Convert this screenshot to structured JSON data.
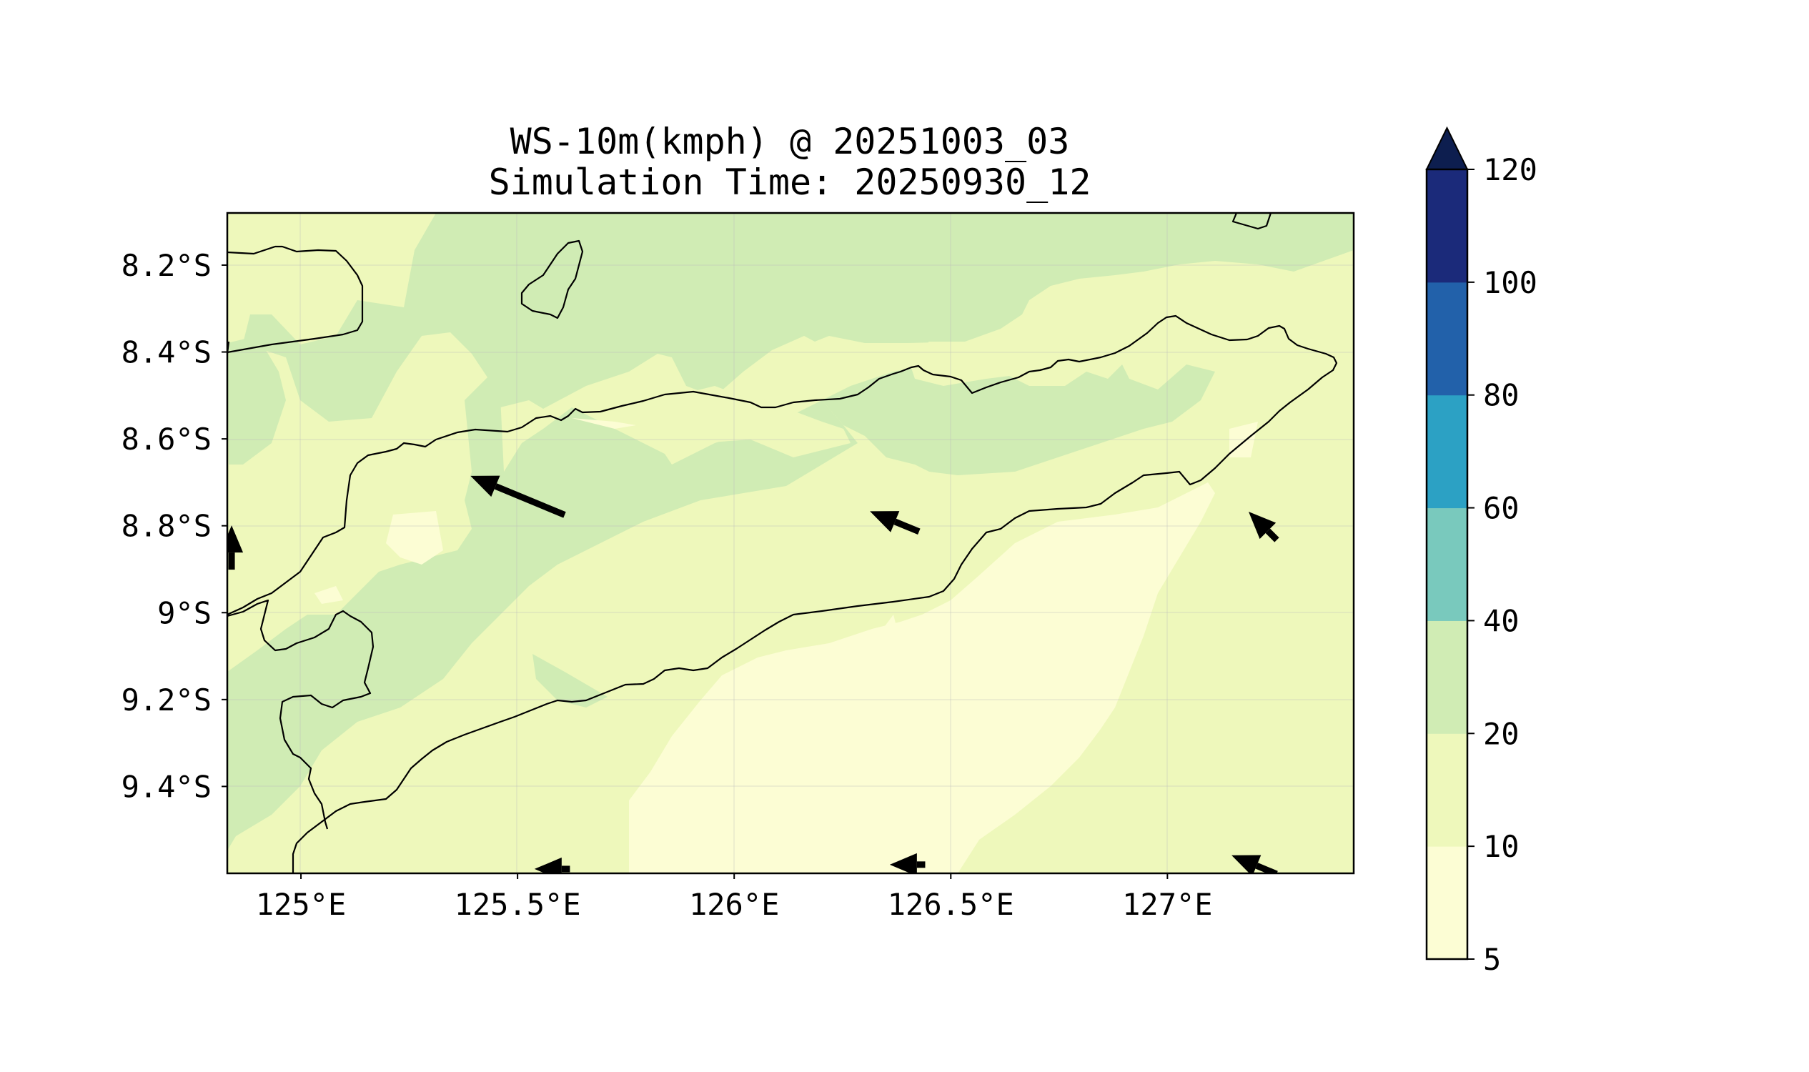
{
  "chart_data": {
    "type": "map",
    "title": "WS-10m(kmph) @ 20251003_03",
    "subtitle": "Simulation Time: 20250930_12",
    "variable": "WS-10m(kmph)",
    "valid_time": "20251003_03",
    "simulation_time": "20250930_12",
    "lon_range": [
      124.83,
      127.43
    ],
    "lat_range": [
      -9.6,
      -8.08
    ],
    "x_ticks": [
      {
        "value": 125.0,
        "label": "125°E"
      },
      {
        "value": 125.5,
        "label": "125.5°E"
      },
      {
        "value": 126.0,
        "label": "126°E"
      },
      {
        "value": 126.5,
        "label": "126.5°E"
      },
      {
        "value": 127.0,
        "label": "127°E"
      }
    ],
    "y_ticks": [
      {
        "value": -8.2,
        "label": "8.2°S"
      },
      {
        "value": -8.4,
        "label": "8.4°S"
      },
      {
        "value": -8.6,
        "label": "8.6°S"
      },
      {
        "value": -8.8,
        "label": "8.8°S"
      },
      {
        "value": -9.0,
        "label": "9°S"
      },
      {
        "value": -9.2,
        "label": "9.2°S"
      },
      {
        "value": -9.4,
        "label": "9.4°S"
      }
    ],
    "colorbar": {
      "levels": [
        5,
        10,
        20,
        40,
        60,
        80,
        100,
        120
      ],
      "labels": [
        "5",
        "10",
        "20",
        "40",
        "60",
        "80",
        "100",
        "120"
      ],
      "colors": [
        "#fcfdd4",
        "#eef8bb",
        "#d0ecb4",
        "#79c9bd",
        "#2ca1c4",
        "#2261aa",
        "#1b2a7a"
      ],
      "extend_color": "#0d1e4f",
      "extend": "max"
    },
    "wind_vectors": [
      {
        "lon": 125.5,
        "lat": -8.73,
        "speed_kmph": 23,
        "dir": "from ESE"
      },
      {
        "lon": 126.37,
        "lat": -8.79,
        "speed_kmph": 12,
        "dir": "from ESE"
      },
      {
        "lon": 127.22,
        "lat": -8.8,
        "speed_kmph": 9,
        "dir": "from SE"
      },
      {
        "lon": 124.84,
        "lat": -8.85,
        "speed_kmph": 10,
        "dir": "from S"
      },
      {
        "lon": 125.58,
        "lat": -9.59,
        "speed_kmph": 8,
        "dir": "from E"
      },
      {
        "lon": 126.4,
        "lat": -9.58,
        "speed_kmph": 8,
        "dir": "from E"
      },
      {
        "lon": 127.2,
        "lat": -9.58,
        "speed_kmph": 11,
        "dir": "from ESE"
      }
    ]
  }
}
